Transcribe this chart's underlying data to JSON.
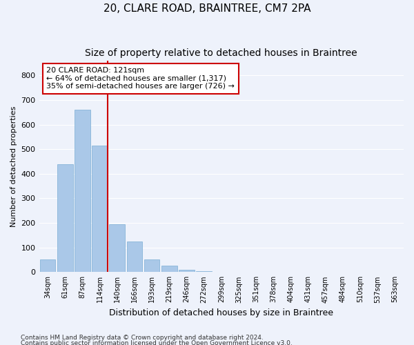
{
  "title": "20, CLARE ROAD, BRAINTREE, CM7 2PA",
  "subtitle": "Size of property relative to detached houses in Braintree",
  "xlabel": "Distribution of detached houses by size in Braintree",
  "ylabel": "Number of detached properties",
  "footnote1": "Contains HM Land Registry data © Crown copyright and database right 2024.",
  "footnote2": "Contains public sector information licensed under the Open Government Licence v3.0.",
  "bin_labels": [
    "34sqm",
    "61sqm",
    "87sqm",
    "114sqm",
    "140sqm",
    "166sqm",
    "193sqm",
    "219sqm",
    "246sqm",
    "272sqm",
    "299sqm",
    "325sqm",
    "351sqm",
    "378sqm",
    "404sqm",
    "431sqm",
    "457sqm",
    "484sqm",
    "510sqm",
    "537sqm",
    "563sqm"
  ],
  "bar_values": [
    50,
    440,
    660,
    515,
    195,
    125,
    50,
    25,
    10,
    5,
    2,
    1,
    0,
    0,
    0,
    0,
    0,
    0,
    0,
    0,
    0
  ],
  "bar_color": "#aac8e8",
  "bar_edge_color": "#7aaed4",
  "ylim": [
    0,
    860
  ],
  "yticks": [
    0,
    100,
    200,
    300,
    400,
    500,
    600,
    700,
    800
  ],
  "property_bin_index": 3,
  "vline_color": "#cc0000",
  "annotation_line1": "20 CLARE ROAD: 121sqm",
  "annotation_line2": "← 64% of detached houses are smaller (1,317)",
  "annotation_line3": "35% of semi-detached houses are larger (726) →",
  "annotation_box_color": "#ffffff",
  "annotation_border_color": "#cc0000",
  "bg_color": "#eef2fb",
  "grid_color": "#ffffff",
  "title_fontsize": 11,
  "subtitle_fontsize": 10,
  "annotation_fontsize": 8
}
